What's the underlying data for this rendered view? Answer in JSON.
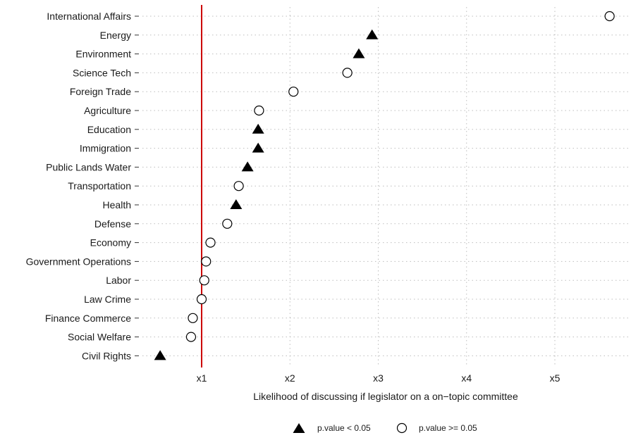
{
  "chart_data": {
    "type": "scatter",
    "title": "",
    "xlabel": "Likelihood of discussing if legislator on a on−topic committee",
    "ylabel": "",
    "x_ticks": [
      {
        "value": 1,
        "label": "x1"
      },
      {
        "value": 2,
        "label": "x2"
      },
      {
        "value": 3,
        "label": "x3"
      },
      {
        "value": 4,
        "label": "x4"
      },
      {
        "value": 5,
        "label": "x5"
      }
    ],
    "xlim": [
      0.45,
      5.82
    ],
    "reference_line": {
      "x": 1,
      "color": "#cc0000"
    },
    "grid": "dotted",
    "legend_position": "bottom",
    "legend": [
      {
        "marker": "triangle",
        "label": "p.value < 0.05"
      },
      {
        "marker": "circle",
        "label": "p.value >= 0.05"
      }
    ],
    "points": [
      {
        "category": "International Affairs",
        "x": 5.62,
        "marker": "circle"
      },
      {
        "category": "Energy",
        "x": 2.93,
        "marker": "triangle"
      },
      {
        "category": "Environment",
        "x": 2.78,
        "marker": "triangle"
      },
      {
        "category": "Science Tech",
        "x": 2.65,
        "marker": "circle"
      },
      {
        "category": "Foreign Trade",
        "x": 2.04,
        "marker": "circle"
      },
      {
        "category": "Agriculture",
        "x": 1.65,
        "marker": "circle"
      },
      {
        "category": "Education",
        "x": 1.64,
        "marker": "triangle"
      },
      {
        "category": "Immigration",
        "x": 1.64,
        "marker": "triangle"
      },
      {
        "category": "Public Lands Water",
        "x": 1.52,
        "marker": "triangle"
      },
      {
        "category": "Transportation",
        "x": 1.42,
        "marker": "circle"
      },
      {
        "category": "Health",
        "x": 1.39,
        "marker": "triangle"
      },
      {
        "category": "Defense",
        "x": 1.29,
        "marker": "circle"
      },
      {
        "category": "Economy",
        "x": 1.1,
        "marker": "circle"
      },
      {
        "category": "Government Operations",
        "x": 1.05,
        "marker": "circle"
      },
      {
        "category": "Labor",
        "x": 1.03,
        "marker": "circle"
      },
      {
        "category": "Law Crime",
        "x": 1.0,
        "marker": "circle"
      },
      {
        "category": "Finance Commerce",
        "x": 0.9,
        "marker": "circle"
      },
      {
        "category": "Social Welfare",
        "x": 0.88,
        "marker": "circle"
      },
      {
        "category": "Civil Rights",
        "x": 0.53,
        "marker": "triangle"
      }
    ]
  }
}
